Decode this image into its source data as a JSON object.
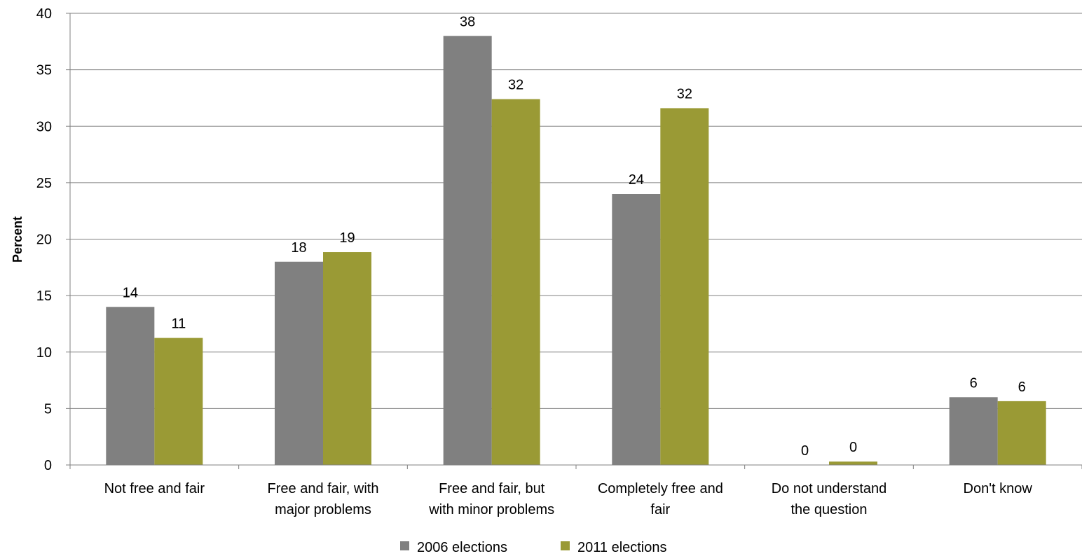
{
  "chart_data": {
    "type": "bar",
    "categories": [
      [
        "Not free and fair"
      ],
      [
        "Free and fair, with",
        "major problems"
      ],
      [
        "Free and fair, but",
        "with minor problems"
      ],
      [
        "Completely free and",
        "fair"
      ],
      [
        "Do not understand",
        "the question"
      ],
      [
        "Don't know"
      ]
    ],
    "series": [
      {
        "name": "2006 elections",
        "color": "#808080",
        "values": [
          14,
          18,
          38,
          24,
          0,
          6
        ],
        "labels": [
          "14",
          "18",
          "38",
          "24",
          "0",
          "6"
        ]
      },
      {
        "name": "2011 elections",
        "color": "#9a9a35",
        "values": [
          11.25,
          18.85,
          32.4,
          31.6,
          0.3,
          5.65
        ],
        "labels": [
          "11",
          "19",
          "32",
          "32",
          "0",
          "6"
        ]
      }
    ],
    "ylabel": "Percent",
    "ylim": [
      0,
      40
    ],
    "yticks": [
      0,
      5,
      10,
      15,
      20,
      25,
      30,
      35,
      40
    ],
    "grid": true,
    "legend_position": "bottom"
  }
}
